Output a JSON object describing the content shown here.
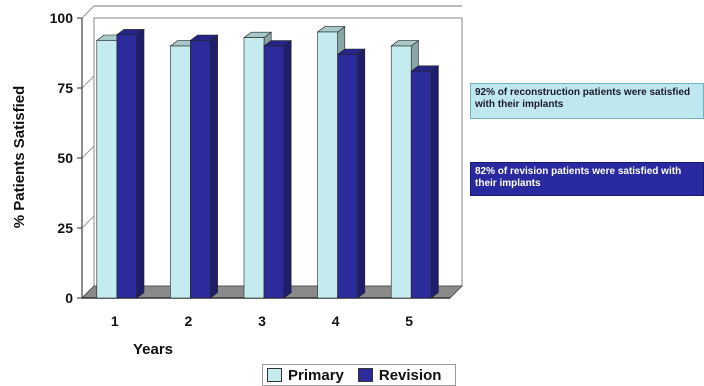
{
  "chart_data": {
    "type": "bar",
    "categories": [
      "1",
      "2",
      "3",
      "4",
      "5"
    ],
    "series": [
      {
        "name": "Primary",
        "values": [
          92,
          90,
          93,
          95,
          90
        ],
        "color": "#c4ecee"
      },
      {
        "name": "Revision",
        "values": [
          94,
          92,
          90,
          87,
          81
        ],
        "color": "#2b2b9c"
      }
    ],
    "title": "",
    "xlabel": "Years",
    "ylabel": "% Patients Satisfied",
    "ylim": [
      0,
      100
    ],
    "yticks": [
      "0",
      "25",
      "50",
      "75",
      "100"
    ],
    "grid": true,
    "three_d": true,
    "legend_position": "bottom",
    "annotations": [
      {
        "text": "92% of reconstruction patients were satisfied with their implants",
        "style": "light"
      },
      {
        "text": "82% of revision patients were satisfied with their implants",
        "style": "dark"
      }
    ]
  }
}
